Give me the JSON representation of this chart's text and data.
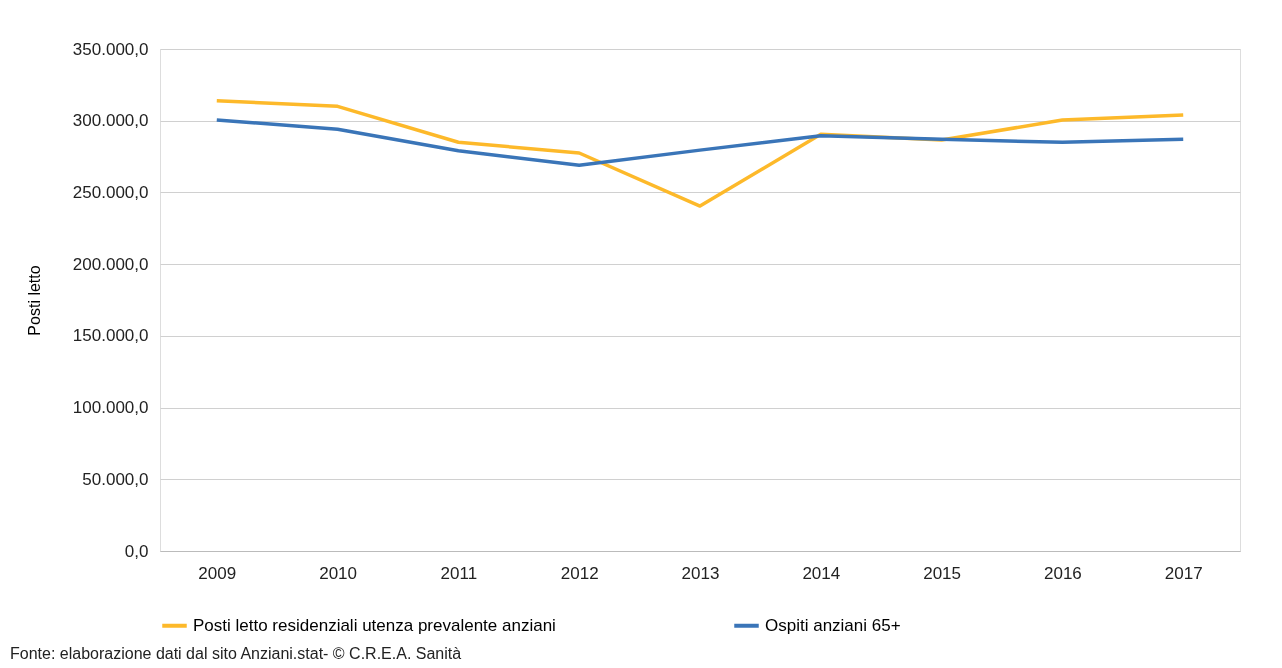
{
  "chart_data": {
    "type": "line",
    "ylabel": "Posti letto",
    "categories": [
      "2009",
      "2010",
      "2011",
      "2012",
      "2013",
      "2014",
      "2015",
      "2016",
      "2017"
    ],
    "series": [
      {
        "name": "Posti letto residenziali utenza prevalente anziani",
        "color": "#fdb92a",
        "values": [
          314000,
          310000,
          285000,
          277500,
          240500,
          290500,
          286500,
          300500,
          304000
        ]
      },
      {
        "name": "Ospiti anziani 65+",
        "color": "#3a75b8",
        "values": [
          300500,
          294000,
          279000,
          269000,
          279500,
          289500,
          287000,
          285000,
          287000
        ]
      }
    ],
    "ylim": [
      0,
      350000
    ],
    "yticks": [
      {
        "value": 0,
        "label": "0,0"
      },
      {
        "value": 50000,
        "label": "50.000,0"
      },
      {
        "value": 100000,
        "label": "100.000,0"
      },
      {
        "value": 150000,
        "label": "150.000,0"
      },
      {
        "value": 200000,
        "label": "200.000,0"
      },
      {
        "value": 250000,
        "label": "250.000,0"
      },
      {
        "value": 300000,
        "label": "300.000,0"
      },
      {
        "value": 350000,
        "label": "350.000,0"
      }
    ],
    "grid": "y",
    "legend": "bottom",
    "marker": "none",
    "line_style": "solid",
    "annotations": [
      "Fonte: elaborazione dati dal sito Anziani.stat- © C.R.E.A. Sanità"
    ]
  }
}
